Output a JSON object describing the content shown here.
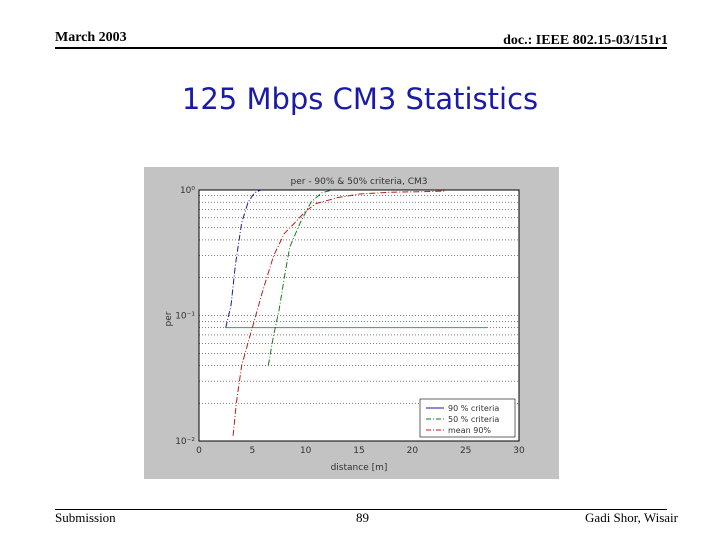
{
  "header": {
    "date": "March 2003",
    "doc_id": "doc.: IEEE 802.15-03/151r1"
  },
  "slide": {
    "title": "125 Mbps CM3 Statistics"
  },
  "footer": {
    "left": "Submission",
    "page": "89",
    "right": "Gadi Shor, Wisair"
  },
  "colors": {
    "title": "#1a1aa8",
    "series_90": "#1a1aaa",
    "series_50": "#1a7a1a",
    "series_mean": "#c01a1a",
    "criteria_line": "#2fa070"
  },
  "chart_data": {
    "type": "line",
    "title": "per - 90% & 50% criteria, CM3",
    "xlabel": "distance [m]",
    "ylabel": "per",
    "xlim": [
      0,
      30
    ],
    "ylim": [
      0.01,
      1
    ],
    "yscale": "log",
    "x_ticks": [
      "0",
      "5",
      "10",
      "15",
      "20",
      "25",
      "30"
    ],
    "y_ticks": [
      "10⁰",
      "10⁻¹",
      "10⁻²"
    ],
    "grid": true,
    "legend": "bottom-right",
    "criteria_line": {
      "y": 0.08,
      "x_range": [
        2.5,
        27
      ]
    },
    "series": [
      {
        "name": "90 % criteria",
        "style": "dash-dot",
        "points": [
          [
            2.5,
            0.08
          ],
          [
            3.0,
            0.12
          ],
          [
            3.4,
            0.25
          ],
          [
            4.0,
            0.55
          ],
          [
            4.6,
            0.8
          ],
          [
            5.2,
            0.95
          ],
          [
            5.8,
            1.0
          ]
        ]
      },
      {
        "name": "50 % criteria",
        "style": "dash-dot",
        "points": [
          [
            6.5,
            0.04
          ],
          [
            7.0,
            0.07
          ],
          [
            7.5,
            0.11
          ],
          [
            8.0,
            0.2
          ],
          [
            8.5,
            0.35
          ],
          [
            9.5,
            0.55
          ],
          [
            10.5,
            0.8
          ],
          [
            11.5,
            0.95
          ],
          [
            12.5,
            1.0
          ]
        ]
      },
      {
        "name": "mean 90%",
        "style": "dash-dot",
        "points": [
          [
            3.2,
            0.011
          ],
          [
            3.5,
            0.02
          ],
          [
            4.0,
            0.04
          ],
          [
            5.0,
            0.08
          ],
          [
            6.0,
            0.16
          ],
          [
            7.0,
            0.3
          ],
          [
            8.0,
            0.45
          ],
          [
            9.0,
            0.55
          ],
          [
            10.0,
            0.68
          ],
          [
            11.0,
            0.78
          ],
          [
            13.0,
            0.87
          ],
          [
            15.0,
            0.93
          ],
          [
            18.0,
            0.96
          ],
          [
            21.0,
            0.97
          ],
          [
            23.0,
            0.98
          ]
        ]
      }
    ]
  }
}
